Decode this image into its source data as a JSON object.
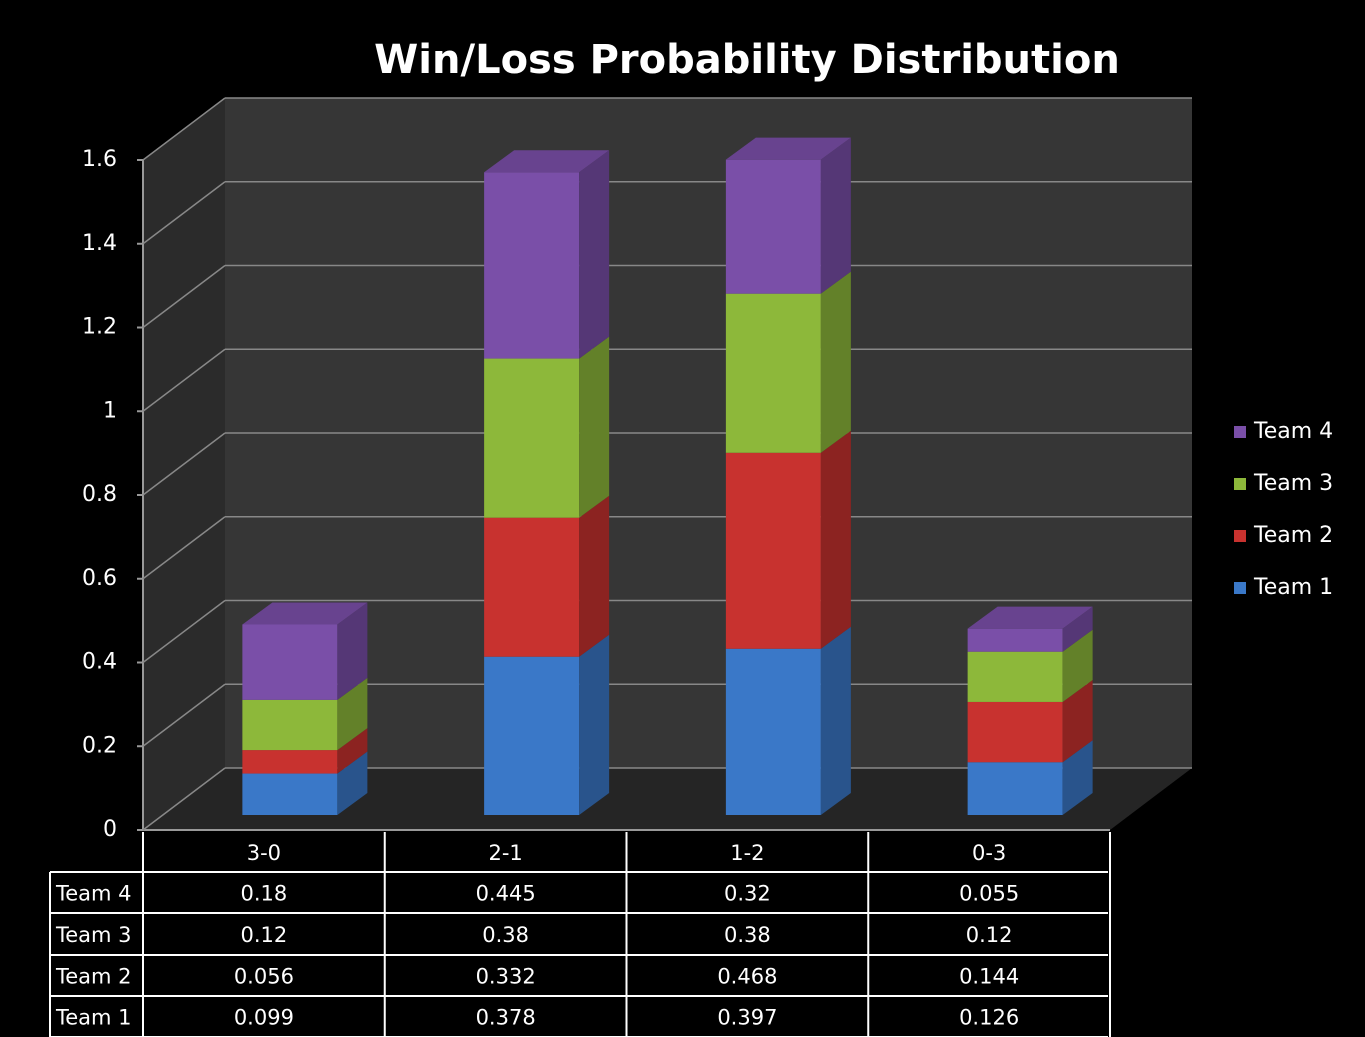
{
  "chart_data": {
    "type": "bar",
    "stacked": true,
    "title": "Win/Loss Probability Distribution",
    "categories": [
      "3-0",
      "2-1",
      "1-2",
      "0-3"
    ],
    "series": [
      {
        "name": "Team 1",
        "color": "#3a78c8",
        "values": [
          0.099,
          0.378,
          0.397,
          0.126
        ]
      },
      {
        "name": "Team 2",
        "color": "#c8322f",
        "values": [
          0.056,
          0.332,
          0.468,
          0.144
        ]
      },
      {
        "name": "Team 3",
        "color": "#8db83a",
        "values": [
          0.12,
          0.38,
          0.38,
          0.12
        ]
      },
      {
        "name": "Team 4",
        "color": "#7a4fa8",
        "values": [
          0.18,
          0.445,
          0.32,
          0.055
        ]
      }
    ],
    "ylim": [
      0,
      1.6
    ],
    "yticks": [
      0,
      0.2,
      0.4,
      0.6,
      0.8,
      1,
      1.2,
      1.4,
      1.6
    ],
    "grid": true,
    "legend": "right",
    "data_table": true
  }
}
